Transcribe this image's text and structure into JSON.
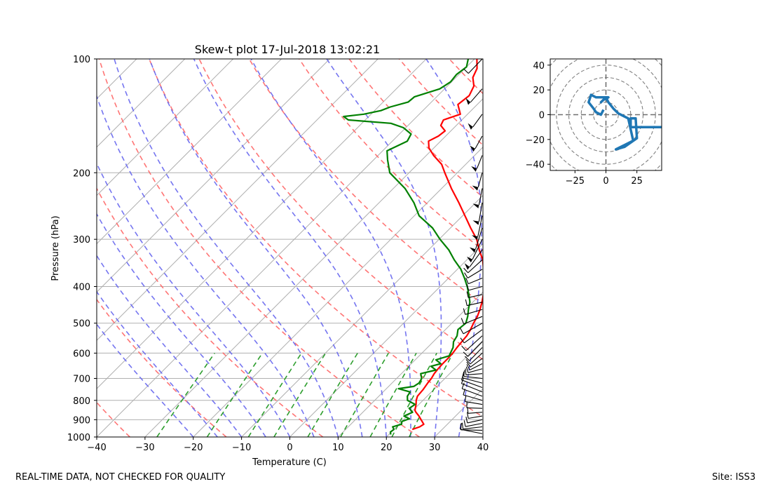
{
  "footer": {
    "left": "REAL-TIME DATA, NOT CHECKED FOR QUALITY",
    "right": "Site: ISS3"
  },
  "chart_data": [
    {
      "type": "line",
      "subtype": "skew-t",
      "title": "Skew-t plot 17-Jul-2018 13:02:21",
      "xlabel": "Temperature (C)",
      "ylabel": "Pressure (hPa)",
      "xlim": [
        -40,
        40
      ],
      "ylim": [
        1000,
        100
      ],
      "yscale": "log",
      "grid": true,
      "xticks": [
        -40,
        -30,
        -20,
        -10,
        0,
        10,
        20,
        30,
        40
      ],
      "yticks": [
        1000,
        900,
        800,
        700,
        600,
        500,
        400,
        300,
        200,
        100
      ],
      "colors": {
        "temperature": "#ff0000",
        "dewpoint": "#008000",
        "dry_adiabat": "#ff6666",
        "moist_adiabat": "#6666ee",
        "mixing_ratio": "#229922",
        "isotherm": "#aaaaaa"
      },
      "series": [
        {
          "key": "temperature",
          "pressure": [
            955,
            940,
            925,
            910,
            900,
            880,
            860,
            850,
            820,
            800,
            780,
            750,
            720,
            700,
            680,
            660,
            640,
            620,
            600,
            580,
            560,
            540,
            520,
            500,
            480,
            460,
            440,
            420,
            400,
            380,
            360,
            340,
            320,
            300,
            280,
            260,
            240,
            220,
            200,
            190,
            180,
            172,
            165,
            160,
            155,
            150,
            145,
            140,
            132,
            125,
            118,
            112,
            106,
            100
          ],
          "values": [
            23.8,
            24.8,
            25.1,
            24.2,
            23.6,
            22.4,
            21.0,
            20.4,
            19.4,
            18.6,
            18.0,
            17.8,
            17.4,
            17.2,
            16.8,
            16.6,
            16.5,
            16.5,
            16.4,
            16.1,
            15.9,
            15.7,
            15.2,
            14.5,
            13.9,
            13.0,
            11.9,
            10.6,
            9.0,
            7.4,
            5.4,
            3.3,
            0.5,
            -2.2,
            -5.8,
            -9.5,
            -13.5,
            -18.0,
            -22.6,
            -25.0,
            -28.5,
            -31.0,
            -32.5,
            -31.5,
            -31.2,
            -33.2,
            -33.8,
            -31.5,
            -34.0,
            -33.5,
            -34.5,
            -36.5,
            -37.5,
            -39.5
          ]
        },
        {
          "key": "dewpoint",
          "pressure": [
            985,
            970,
            955,
            940,
            925,
            910,
            895,
            880,
            860,
            840,
            820,
            800,
            780,
            760,
            745,
            735,
            720,
            700,
            680,
            665,
            650,
            640,
            625,
            610,
            600,
            580,
            560,
            540,
            520,
            500,
            480,
            460,
            440,
            420,
            400,
            380,
            360,
            340,
            320,
            300,
            280,
            260,
            240,
            220,
            200,
            185,
            175,
            165,
            158,
            152,
            148,
            145,
            142,
            140,
            137,
            134,
            130,
            126,
            120,
            115,
            110,
            105,
            100
          ],
          "values": [
            20.4,
            19.8,
            20.0,
            19.2,
            20.5,
            20.0,
            21.0,
            19.3,
            20.3,
            18.8,
            19.2,
            16.8,
            15.9,
            15.6,
            12.5,
            15.2,
            15.6,
            15.2,
            14.0,
            16.4,
            14.6,
            16.1,
            14.3,
            16.2,
            15.9,
            15.3,
            14.2,
            13.7,
            12.6,
            12.9,
            11.9,
            10.6,
            9.4,
            7.6,
            5.6,
            3.3,
            0.7,
            -2.6,
            -5.8,
            -9.8,
            -13.7,
            -19.0,
            -22.8,
            -27.6,
            -34.0,
            -37.1,
            -39.1,
            -36.9,
            -37.6,
            -40.5,
            -44.0,
            -53.5,
            -55.2,
            -51.5,
            -48.7,
            -47.5,
            -44.8,
            -44.6,
            -41.0,
            -40.2,
            -40.5,
            -40.0,
            -41.3
          ]
        }
      ],
      "hodograph": {
        "type": "line",
        "xlim": [
          -45,
          45
        ],
        "ylim": [
          -45,
          45
        ],
        "xticks": [
          -25,
          0,
          25
        ],
        "yticks": [
          -40,
          -20,
          0,
          20,
          40
        ],
        "color": "#1f77b4",
        "u": [
          47,
          20,
          20,
          24,
          25,
          15,
          8,
          14,
          22,
          18,
          10,
          6,
          2,
          0,
          -4,
          -2,
          2,
          -8,
          -12,
          -14,
          -10,
          -8,
          -4,
          -2
        ],
        "v": [
          -10,
          -10,
          -3,
          -3,
          -19,
          -26,
          -28,
          -25,
          -21,
          -3,
          1,
          5,
          10,
          14,
          10,
          12,
          14,
          14,
          16,
          10,
          5,
          2,
          0,
          4
        ]
      }
    }
  ]
}
